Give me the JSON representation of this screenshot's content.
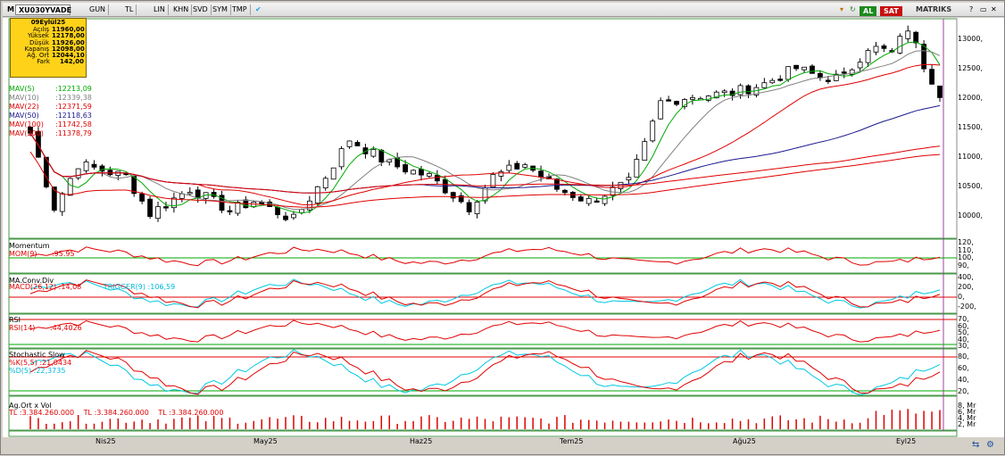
{
  "toolbar": {
    "symbol": "XU030YVADE",
    "period": "GUN",
    "currency": "TL",
    "scale": "LIN",
    "khn": "KHN",
    "svd": "SVD",
    "sym": "SYM",
    "tmp": "TMP",
    "buy_label": "AL",
    "sell_label": "SAT",
    "brand": "MATRIKS"
  },
  "info": {
    "date": "09Eylül25",
    "rows": [
      {
        "label": "Açılış",
        "value": "11960,00"
      },
      {
        "label": "Yüksek",
        "value": "12178,00"
      },
      {
        "label": "Düşük",
        "value": "11926,00"
      },
      {
        "label": "Kapanış",
        "value": "12098,00"
      },
      {
        "label": "Ağ. Ort",
        "value": "12044,10"
      },
      {
        "label": "Fark",
        "value": "142,00"
      }
    ]
  },
  "ma_legend": [
    {
      "label": "MAV(5)",
      "value": ":12213,09",
      "color": "#00aa00"
    },
    {
      "label": "MAV(10)",
      "value": ":12339,38",
      "color": "#808080"
    },
    {
      "label": "MAV(22)",
      "value": ":12371,59",
      "color": "#e00000"
    },
    {
      "label": "MAV(50)",
      "value": ":12118,63",
      "color": "#1a1a8c"
    },
    {
      "label": "MAV(100)",
      "value": ":11742,58",
      "color": "#e00000"
    },
    {
      "label": "MAV(200)",
      "value": ":11378,79",
      "color": "#e00000"
    }
  ],
  "price_axis": [
    "13000,",
    "12500,",
    "12000,",
    "11500,",
    "11000,",
    "10500,",
    "10000,"
  ],
  "momentum": {
    "title": "Momentum",
    "label": "MOM(9)",
    "value": ":95.95",
    "axis": [
      "120,",
      "110,",
      "100,",
      "90,"
    ]
  },
  "macd": {
    "title": "MA.Conv.Div",
    "label": "MACD(26,12)",
    "value": ":14,08",
    "trigger_label": "TRIGGER(9)",
    "trigger_value": ":106,59",
    "axis": [
      "400,",
      "200,",
      "0,",
      "-200,"
    ]
  },
  "rsi": {
    "title": "RSI",
    "label": "RSI(14)",
    "value": ":44,4026",
    "axis": [
      "70,",
      "60,",
      "50,",
      "40,",
      "30,"
    ]
  },
  "stoch": {
    "title": "Stochastic Slow",
    "k_label": "%K(5,5)",
    "k_value": ":21,0434",
    "d_label": "%D(5)",
    "d_value": ":22,3735",
    "axis": [
      "80,",
      "60,",
      "40,",
      "20,"
    ]
  },
  "volume": {
    "title": "Ag.Ort x Vol",
    "tl1": "TL",
    "v1": ":3.384.260.000",
    "tl2": "TL",
    "v2": ":3.384.260.000",
    "tl3": "TL",
    "v3": ":3.384.260.000",
    "axis": [
      "8, Mr",
      "6, Mr",
      "4, Mr",
      "2, Mr"
    ]
  },
  "dates": [
    "Nis25",
    "May25",
    "Haz25",
    "Tem25",
    "Ağu25",
    "Eyl25"
  ],
  "colors": {
    "up": "#ffffff",
    "down": "#000000",
    "accent": "#00aa00"
  }
}
